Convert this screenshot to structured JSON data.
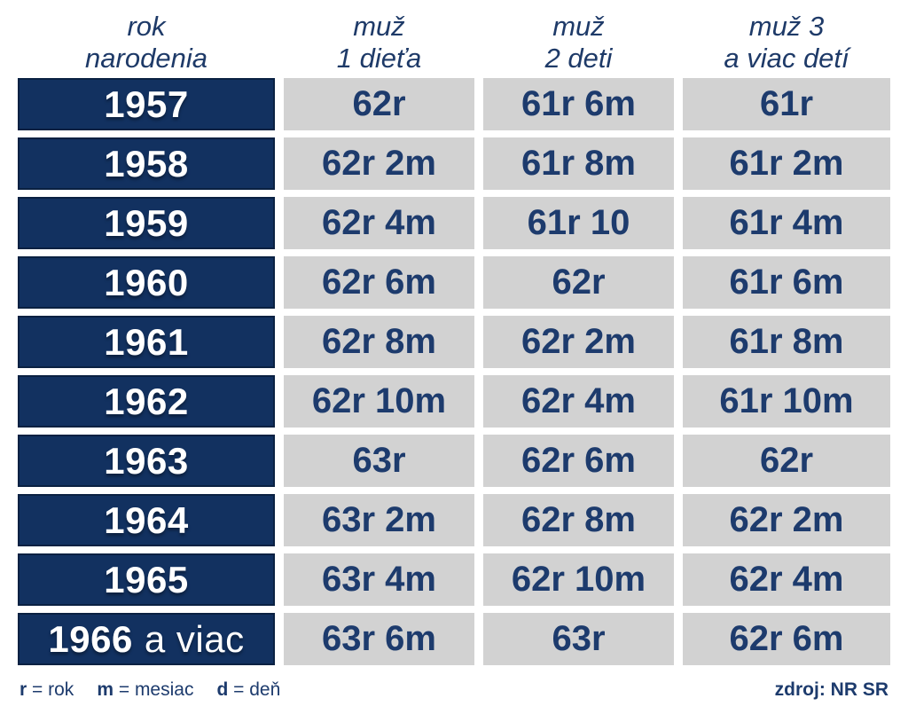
{
  "colors": {
    "navy_fill": "#123160",
    "navy_border": "#0a2142",
    "navy_text": "#1d3b6d",
    "cell_gray": "#d2d2d2",
    "white": "#ffffff"
  },
  "header": {
    "columns": [
      {
        "line1": "rok",
        "line2": "narodenia"
      },
      {
        "line1": "muž",
        "line2": "1 dieťa"
      },
      {
        "line1": "muž",
        "line2": "2 deti"
      },
      {
        "line1": "muž 3",
        "line2": "a viac detí"
      }
    ]
  },
  "table": {
    "rows": [
      {
        "year": "1957",
        "suffix": "",
        "c1": "62r",
        "c2": "61r 6m",
        "c3": "61r"
      },
      {
        "year": "1958",
        "suffix": "",
        "c1": "62r 2m",
        "c2": "61r 8m",
        "c3": "61r 2m"
      },
      {
        "year": "1959",
        "suffix": "",
        "c1": "62r 4m",
        "c2": "61r 10",
        "c3": "61r 4m"
      },
      {
        "year": "1960",
        "suffix": "",
        "c1": "62r 6m",
        "c2": "62r",
        "c3": "61r 6m"
      },
      {
        "year": "1961",
        "suffix": "",
        "c1": "62r 8m",
        "c2": "62r 2m",
        "c3": "61r 8m"
      },
      {
        "year": "1962",
        "suffix": "",
        "c1": "62r 10m",
        "c2": "62r 4m",
        "c3": "61r 10m"
      },
      {
        "year": "1963",
        "suffix": "",
        "c1": "63r",
        "c2": "62r 6m",
        "c3": "62r"
      },
      {
        "year": "1964",
        "suffix": "",
        "c1": "63r 2m",
        "c2": "62r 8m",
        "c3": "62r 2m"
      },
      {
        "year": "1965",
        "suffix": "",
        "c1": "63r 4m",
        "c2": "62r 10m",
        "c3": "62r 4m"
      },
      {
        "year": "1966",
        "suffix": "a viac",
        "c1": "63r 6m",
        "c2": "63r",
        "c3": "62r 6m"
      }
    ]
  },
  "footer": {
    "legend": [
      {
        "key": "r",
        "rest": "= rok"
      },
      {
        "key": "m",
        "rest": "= mesiac"
      },
      {
        "key": "d",
        "rest": "= deň"
      }
    ],
    "source": "zdroj: NR SR"
  },
  "chart_data": {
    "type": "table",
    "columns": [
      "rok narodenia",
      "muž 1 dieťa",
      "muž 2 deti",
      "muž 3 a viac detí"
    ],
    "rows": [
      [
        "1957",
        "62r",
        "61r 6m",
        "61r"
      ],
      [
        "1958",
        "62r 2m",
        "61r 8m",
        "61r 2m"
      ],
      [
        "1959",
        "62r 4m",
        "61r 10",
        "61r 4m"
      ],
      [
        "1960",
        "62r 6m",
        "62r",
        "61r 6m"
      ],
      [
        "1961",
        "62r 8m",
        "62r 2m",
        "61r 8m"
      ],
      [
        "1962",
        "62r 10m",
        "62r 4m",
        "61r 10m"
      ],
      [
        "1963",
        "63r",
        "62r 6m",
        "62r"
      ],
      [
        "1964",
        "63r 2m",
        "62r 8m",
        "62r 2m"
      ],
      [
        "1965",
        "63r 4m",
        "62r 10m",
        "62r 4m"
      ],
      [
        "1966 a viac",
        "63r 6m",
        "63r",
        "62r 6m"
      ]
    ],
    "legend": "r = rok, m = mesiac, d = deň",
    "source": "zdroj: NR SR"
  }
}
